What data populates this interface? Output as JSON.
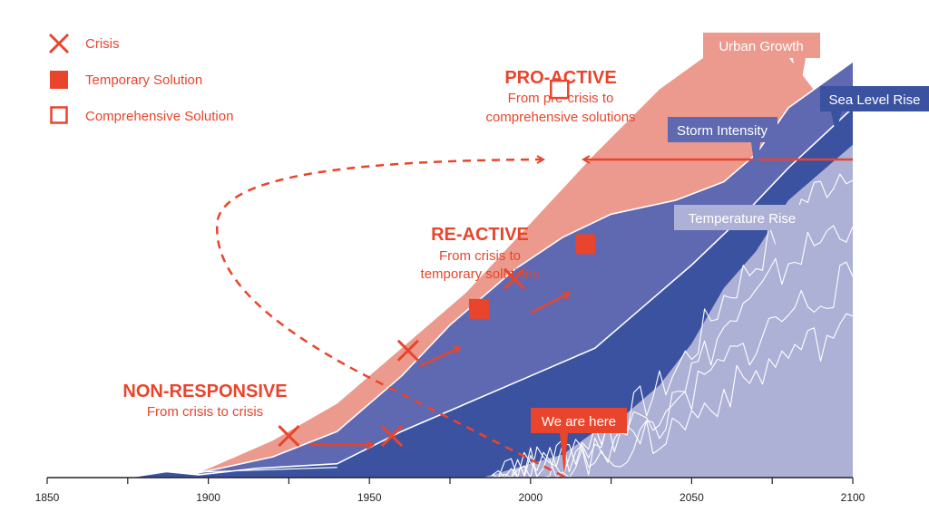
{
  "colors": {
    "urban": "#ec9a8e",
    "storm": "#5f69b1",
    "sea": "#3a52a0",
    "temp": "#aeb1d6",
    "accent": "#e8452c",
    "axis": "#222222"
  },
  "legend": [
    {
      "icon": "cross-icon",
      "label": "Crisis"
    },
    {
      "icon": "filled-square-icon",
      "label": "Temporary Solution"
    },
    {
      "icon": "hollow-square-icon",
      "label": "Comprehensive Solution"
    }
  ],
  "stages": {
    "non_responsive": {
      "title": "NON-RESPONSIVE",
      "subtitle": "From crisis to crisis"
    },
    "re_active": {
      "title": "RE-ACTIVE",
      "subtitle_1": "From crisis to",
      "subtitle_2": "temporary solutions"
    },
    "pro_active": {
      "title": "PRO-ACTIVE",
      "subtitle_1": "From pre-crisis to",
      "subtitle_2": "comprehensive solutions"
    }
  },
  "callouts": {
    "urban_growth": "Urban Growth",
    "sea_level_rise": "Sea Level Rise",
    "storm_intensity": "Storm Intensity",
    "temperature_rise": "Temperature Rise",
    "we_are_here": "We are here"
  },
  "chart_data": {
    "type": "area",
    "title": "",
    "xlabel": "",
    "ylabel": "",
    "xlim": [
      1850,
      2100
    ],
    "ylim": [
      0,
      100
    ],
    "x_ticks": [
      1850,
      1900,
      1950,
      2000,
      2050,
      2100
    ],
    "series": [
      {
        "name": "Urban Growth",
        "x": [
          1897,
          1920,
          1940,
          1960,
          1980,
          2000,
          2020,
          2040,
          2060,
          2070,
          2080,
          2090,
          2097,
          2100
        ],
        "values": [
          1,
          8,
          16,
          28,
          40,
          55,
          70,
          84,
          94,
          95.5,
          91,
          82,
          72,
          70
        ]
      },
      {
        "name": "Storm Intensity",
        "x": [
          1897,
          1920,
          1940,
          1960,
          1975,
          1995,
          2010,
          2025,
          2045,
          2060,
          2070,
          2080,
          2090,
          2100
        ],
        "values": [
          1,
          4.5,
          10,
          22,
          33,
          45,
          52,
          57,
          60,
          64,
          70,
          80,
          85,
          90
        ]
      },
      {
        "name": "Sea Level Rise",
        "x": [
          1875,
          1887,
          1897,
          1915,
          1940,
          1960,
          1980,
          2000,
          2020,
          2035,
          2050,
          2065,
          2080,
          2100
        ],
        "values": [
          0,
          1.3,
          0.6,
          2,
          3,
          10,
          16,
          22,
          28,
          37,
          46,
          56,
          67,
          80
        ]
      },
      {
        "name": "Temperature Rise",
        "x": [
          1985,
          2000,
          2010,
          2020,
          2030,
          2040,
          2050,
          2060,
          2070,
          2080,
          2090,
          2100
        ],
        "values": [
          0,
          3,
          5,
          10,
          14,
          20,
          29,
          41,
          49,
          60,
          66,
          72
        ]
      }
    ],
    "markers": [
      {
        "type": "crisis",
        "x": 1925,
        "y": 9
      },
      {
        "type": "crisis",
        "x": 1957,
        "y": 9
      },
      {
        "type": "crisis",
        "x": 1962,
        "y": 27.5
      },
      {
        "type": "temporary",
        "x": 1984,
        "y": 36.5
      },
      {
        "type": "crisis",
        "x": 1995,
        "y": 43
      },
      {
        "type": "temporary",
        "x": 2017,
        "y": 50.5
      },
      {
        "type": "comprehensive",
        "x": 2009,
        "y": 84
      }
    ],
    "annotations": [
      "NON-RESPONSIVE",
      "RE-ACTIVE",
      "PRO-ACTIVE",
      "We are here"
    ],
    "legend_position": "top-left"
  }
}
